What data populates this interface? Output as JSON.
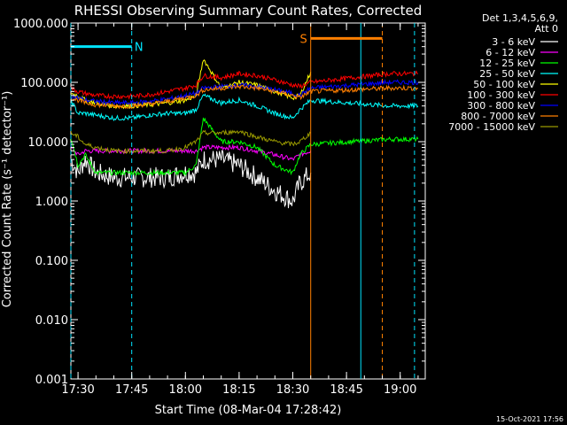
{
  "chart_data": {
    "type": "line",
    "title": "RHESSI Observing Summary Count Rates, Corrected",
    "xlabel": "Start Time (08-Mar-04 17:28:42)",
    "ylabel": "Corrected Count Rate (s⁻¹ detector⁻¹)",
    "y_scale": "log",
    "ylim": [
      0.001,
      1000
    ],
    "xlim": [
      "17:28",
      "19:07"
    ],
    "x_tick_labels": [
      "17:30",
      "17:45",
      "18:00",
      "18:15",
      "18:30",
      "18:45",
      "19:00"
    ],
    "y_tick_labels": [
      "1000.000",
      "100.000",
      "10.000",
      "1.000",
      "0.100",
      "0.010",
      "0.001"
    ],
    "legend_header": [
      "Det 1,3,4,5,6,9,",
      "Att 0"
    ],
    "legend_placement": "right",
    "footer_date": "15-Oct-2021 17:56",
    "markers": [
      {
        "label": "N",
        "color": "#00e5ff",
        "level": 400,
        "start": "17:28",
        "end": "17:45"
      },
      {
        "label": "S",
        "color": "#ff7f00",
        "level": 550,
        "start": "18:35",
        "end": "18:55"
      }
    ],
    "vertical_lines": [
      {
        "time": "17:28",
        "color": "#00e5ff",
        "style": "dashed"
      },
      {
        "time": "17:45",
        "color": "#00e5ff",
        "style": "dashed"
      },
      {
        "time": "18:35",
        "color": "#ff7f00",
        "style": "solid"
      },
      {
        "time": "18:49",
        "color": "#00e5ff",
        "style": "solid"
      },
      {
        "time": "18:55",
        "color": "#ff7f00",
        "style": "dashed"
      },
      {
        "time": "19:04",
        "color": "#00e5ff",
        "style": "dashed"
      }
    ],
    "x": [
      "17:28",
      "17:30",
      "17:32",
      "17:35",
      "17:40",
      "17:45",
      "17:50",
      "17:55",
      "18:00",
      "18:03",
      "18:05",
      "18:10",
      "18:15",
      "18:20",
      "18:25",
      "18:30",
      "18:32",
      "18:35",
      "18:57",
      "19:00",
      "19:03",
      "19:05"
    ],
    "series": [
      {
        "name": "3 - 6 keV",
        "color": "#ffffff",
        "values": [
          5,
          3,
          5,
          3,
          2.5,
          2.5,
          2.5,
          2.5,
          3,
          3,
          5,
          5,
          4,
          2.5,
          1.5,
          1,
          2,
          3,
          null,
          null,
          null,
          null
        ]
      },
      {
        "name": "6 - 12 keV",
        "color": "#ff00ff",
        "values": [
          8,
          6,
          7,
          7,
          7,
          7,
          7,
          7,
          7,
          7,
          8,
          8,
          8,
          7,
          6,
          5,
          6,
          7,
          null,
          null,
          null,
          null
        ]
      },
      {
        "name": "12 - 25 keV",
        "color": "#00ff00",
        "values": [
          12,
          4,
          6,
          3,
          3,
          3,
          3,
          3,
          3,
          4,
          25,
          10,
          10,
          8,
          4,
          3,
          6,
          9,
          11,
          11,
          11,
          11
        ]
      },
      {
        "name": "25 - 50 keV",
        "color": "#00ffff",
        "values": [
          50,
          30,
          30,
          28,
          25,
          25,
          28,
          30,
          30,
          35,
          60,
          45,
          50,
          40,
          30,
          25,
          35,
          50,
          40,
          40,
          40,
          40
        ]
      },
      {
        "name": "50 - 100 keV",
        "color": "#ffff00",
        "values": [
          65,
          60,
          50,
          45,
          40,
          40,
          42,
          45,
          50,
          60,
          250,
          80,
          100,
          90,
          70,
          55,
          60,
          150,
          null,
          null,
          null,
          null
        ]
      },
      {
        "name": "100 - 300 keV",
        "color": "#ff0000",
        "values": [
          80,
          70,
          65,
          60,
          58,
          58,
          62,
          70,
          80,
          90,
          130,
          120,
          140,
          130,
          110,
          90,
          85,
          100,
          140,
          140,
          140,
          140
        ]
      },
      {
        "name": "300 - 800 keV",
        "color": "#0000ff",
        "values": [
          60,
          55,
          50,
          48,
          45,
          45,
          48,
          52,
          60,
          65,
          80,
          85,
          90,
          85,
          75,
          65,
          60,
          80,
          100,
          100,
          100,
          100
        ]
      },
      {
        "name": "800 - 7000 keV",
        "color": "#ff7f00",
        "values": [
          55,
          50,
          45,
          42,
          40,
          40,
          43,
          48,
          55,
          60,
          75,
          80,
          85,
          80,
          70,
          60,
          55,
          70,
          80,
          80,
          80,
          80
        ]
      },
      {
        "name": "7000 - 15000 keV",
        "color": "#999900",
        "values": [
          14,
          12,
          9,
          8,
          7,
          7,
          7,
          7,
          8,
          10,
          14,
          14,
          15,
          12,
          10,
          9,
          10,
          14,
          null,
          null,
          null,
          null
        ]
      }
    ]
  }
}
